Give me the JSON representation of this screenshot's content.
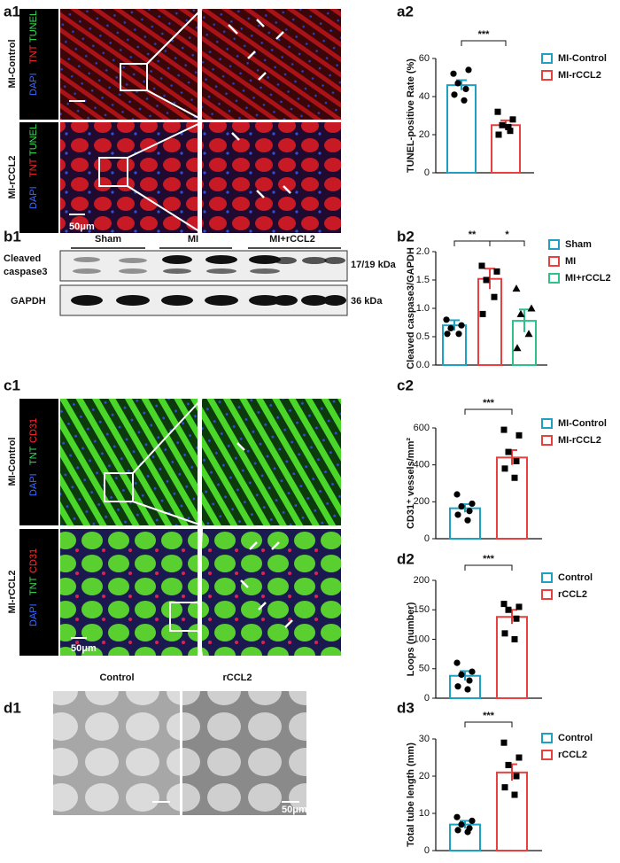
{
  "panels": {
    "a1": {
      "label": "a1",
      "rows": [
        "MI-Control",
        "MI-rCCL2"
      ],
      "stains": [
        "DAPI",
        "TNT",
        "TUNEL"
      ],
      "scale": "50μm"
    },
    "b1": {
      "label": "b1",
      "groups": [
        "Sham",
        "MI",
        "MI+rCCL2"
      ],
      "bands": [
        {
          "name_lines": [
            "Cleaved",
            "caspase3"
          ],
          "size": "17/19 kDa"
        },
        {
          "name_lines": [
            "GAPDH"
          ],
          "size": "36 kDa"
        }
      ]
    },
    "c1": {
      "label": "c1",
      "rows": [
        "MI-Control",
        "MI-rCCL2"
      ],
      "stains": [
        "DAPI",
        "TNT",
        "CD31"
      ],
      "scale": "50μm"
    },
    "d1": {
      "label": "d1",
      "conditions": [
        "Control",
        "rCCL2"
      ],
      "scale": "50μm"
    }
  },
  "chart_data": [
    {
      "type": "bar",
      "label": "a2",
      "y_label": "TUNEL-positive Rate (%)",
      "ylim": [
        0,
        60
      ],
      "yticks": [
        0,
        20,
        40,
        60
      ],
      "significance": [
        "***"
      ],
      "series": [
        {
          "name": "MI-Control",
          "color": "#1ea0c3",
          "marker": "circle",
          "values": [
            46
          ],
          "errors": [
            2.6
          ],
          "points": [
            52,
            54,
            47,
            44,
            41,
            38
          ]
        },
        {
          "name": "MI-rCCL2",
          "color": "#e8403e",
          "marker": "square",
          "values": [
            25
          ],
          "errors": [
            2.5
          ],
          "points": [
            32,
            28,
            25,
            22,
            20,
            24
          ]
        }
      ]
    },
    {
      "type": "bar",
      "label": "b2",
      "y_label": "Cleaved caspase3/GAPDH",
      "ylim": [
        0,
        2
      ],
      "yticks": [
        {
          "value": 0,
          "label": "0.0"
        },
        {
          "value": 0.5,
          "label": "0.5"
        },
        {
          "value": 1,
          "label": "1.0"
        },
        {
          "value": 1.5,
          "label": "1.5"
        },
        {
          "value": 2,
          "label": "2.0"
        }
      ],
      "significance": [
        "**",
        "*"
      ],
      "series": [
        {
          "name": "Sham",
          "color": "#1ea0c3",
          "marker": "circle",
          "values": [
            0.7
          ],
          "errors": [
            0.09
          ],
          "points": [
            0.8,
            0.7,
            0.65,
            0.55,
            0.55
          ]
        },
        {
          "name": "MI",
          "color": "#e8403e",
          "marker": "square",
          "values": [
            1.52
          ],
          "errors": [
            0.18
          ],
          "points": [
            1.75,
            1.65,
            1.5,
            1.2,
            0.9
          ]
        },
        {
          "name": "MI+rCCL2",
          "color": "#2ec28a",
          "marker": "triangle",
          "values": [
            0.78
          ],
          "errors": [
            0.2
          ],
          "points": [
            1.35,
            1.0,
            0.9,
            0.55,
            0.3
          ]
        }
      ]
    },
    {
      "type": "bar",
      "label": "c2",
      "y_label": "CD31⁺ vessels/mm²",
      "ylim": [
        0,
        600
      ],
      "yticks": [
        0,
        200,
        400,
        600
      ],
      "significance": [
        "***"
      ],
      "series": [
        {
          "name": "MI-Control",
          "color": "#1ea0c3",
          "marker": "circle",
          "values": [
            165
          ],
          "errors": [
            22
          ],
          "points": [
            240,
            190,
            175,
            150,
            130,
            100
          ]
        },
        {
          "name": "MI-rCCL2",
          "color": "#e8403e",
          "marker": "square",
          "values": [
            440
          ],
          "errors": [
            40
          ],
          "points": [
            590,
            560,
            470,
            420,
            380,
            330
          ]
        }
      ]
    },
    {
      "type": "bar",
      "label": "d2",
      "y_label": "Loops (number)",
      "ylim": [
        0,
        200
      ],
      "yticks": [
        0,
        50,
        100,
        150,
        200
      ],
      "significance": [
        "***"
      ],
      "series": [
        {
          "name": "Control",
          "color": "#1ea0c3",
          "marker": "circle",
          "values": [
            38
          ],
          "errors": [
            8
          ],
          "points": [
            60,
            45,
            40,
            30,
            20,
            15
          ]
        },
        {
          "name": "rCCL2",
          "color": "#e8403e",
          "marker": "square",
          "values": [
            138
          ],
          "errors": [
            12
          ],
          "points": [
            160,
            155,
            150,
            135,
            110,
            100
          ]
        }
      ]
    },
    {
      "type": "bar",
      "label": "d3",
      "y_label": "Total tube length (mm)",
      "ylim": [
        0,
        30
      ],
      "yticks": [
        0,
        10,
        20,
        30
      ],
      "significance": [
        "***"
      ],
      "series": [
        {
          "name": "Control",
          "color": "#1ea0c3",
          "marker": "circle",
          "values": [
            7
          ],
          "errors": [
            1
          ],
          "points": [
            9,
            8,
            7,
            6,
            5.5,
            5
          ]
        },
        {
          "name": "rCCL2",
          "color": "#e8403e",
          "marker": "square",
          "values": [
            21
          ],
          "errors": [
            2.2
          ],
          "points": [
            29,
            25,
            23,
            20,
            17,
            15
          ]
        }
      ]
    }
  ]
}
